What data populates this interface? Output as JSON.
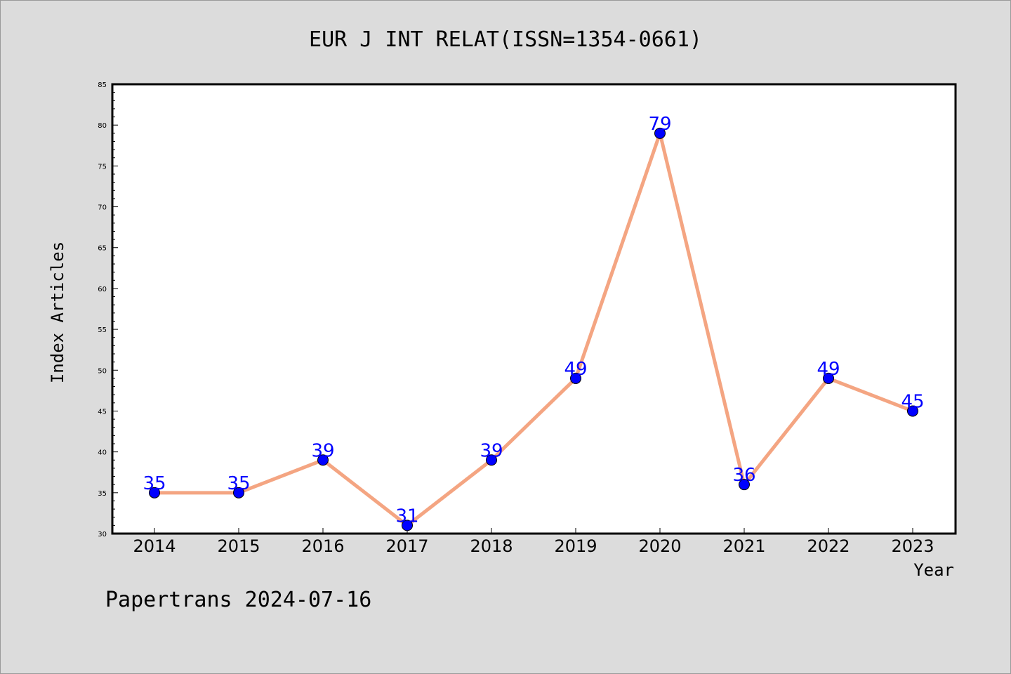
{
  "chart_data": {
    "type": "line",
    "title": "EUR J INT RELAT(ISSN=1354-0661)",
    "xlabel": "Year",
    "ylabel": "Index Articles",
    "categories": [
      "2014",
      "2015",
      "2016",
      "2017",
      "2018",
      "2019",
      "2020",
      "2021",
      "2022",
      "2023"
    ],
    "values": [
      35,
      35,
      39,
      31,
      39,
      49,
      79,
      36,
      49,
      45
    ],
    "ylim": [
      30,
      85
    ],
    "yticks": [
      30,
      35,
      40,
      45,
      50,
      55,
      60,
      65,
      70,
      75,
      80,
      85
    ],
    "grid": false,
    "legend": "none",
    "line_color": "#f4a582",
    "marker_color": "#0000ff",
    "label_color": "#0000ff"
  },
  "footer": "Papertrans 2024-07-16"
}
